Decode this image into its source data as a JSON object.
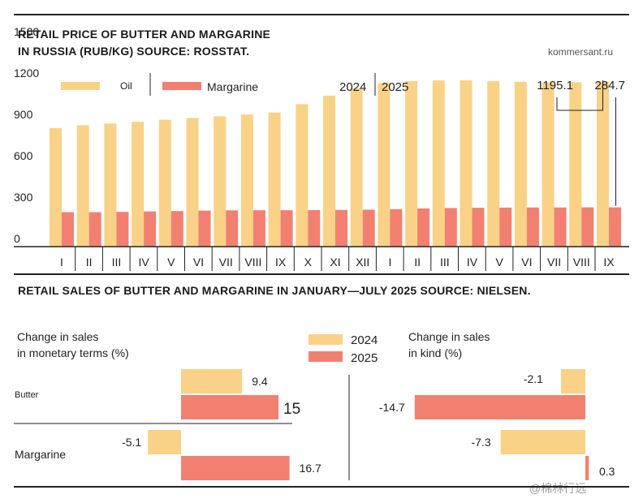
{
  "source_site": "kommersant.ru",
  "watermark": "@棉林行远",
  "colors": {
    "oil": "#f9d287",
    "margarine": "#f28071",
    "axis": "#222222",
    "text": "#222222"
  },
  "price_chart": {
    "title_line1": "RETAIL PRICE OF BUTTER AND MARGARINE",
    "title_line2": "IN RUSSIA (RUB/KG) SOURCE: ROSSTAT."
  },
  "sales_chart": {
    "title": "RETAIL SALES OF BUTTER AND MARGARINE IN JANUARY—JULY 2025 SOURCE: NIELSEN.",
    "left_header": [
      "Change in sales",
      "in monetary terms (%)"
    ],
    "right_header": [
      "Change in sales",
      "in kind (%)"
    ]
  },
  "chart_data": [
    {
      "type": "bar",
      "title": "RETAIL PRICE OF BUTTER AND MARGARINE IN RUSSIA (RUB/KG) SOURCE: ROSSTAT.",
      "ylim": [
        0,
        1500
      ],
      "yticks": [
        0,
        300,
        600,
        900,
        1200,
        1500
      ],
      "categories": [
        "I",
        "II",
        "III",
        "IV",
        "V",
        "VI",
        "VII",
        "VIII",
        "IX",
        "X",
        "XI",
        "XII",
        "I",
        "II",
        "III",
        "IV",
        "V",
        "VI",
        "VII",
        "VIII",
        "IX"
      ],
      "year_labels": [
        "2024",
        "2025"
      ],
      "series": [
        {
          "name": "Oil",
          "values": [
            860,
            880,
            893,
            905,
            920,
            933,
            945,
            958,
            972,
            1033,
            1095,
            1148,
            1185,
            1200,
            1205,
            1205,
            1200,
            1195,
            1190,
            1192,
            1195.1
          ]
        },
        {
          "name": "Margarine",
          "values": [
            250,
            250,
            252,
            255,
            258,
            261,
            263,
            264,
            264,
            265,
            266,
            268,
            272,
            277,
            280,
            282,
            283,
            284,
            284,
            285,
            284.7
          ]
        }
      ],
      "annotations": [
        {
          "text": "1195.1",
          "series": "Oil",
          "index": 20
        },
        {
          "text": "284.7",
          "series": "Margarine",
          "index": 20
        }
      ]
    },
    {
      "type": "bar",
      "orientation": "horizontal",
      "title": "Change in sales in monetary terms (%)",
      "categories": [
        "Butter",
        "Margarine"
      ],
      "series": [
        {
          "name": "2024",
          "values": [
            9.4,
            -5.1
          ],
          "labels": [
            "9.4",
            "-5.1"
          ]
        },
        {
          "name": "2025",
          "values": [
            15,
            16.7
          ],
          "labels": [
            "15",
            "16.7"
          ]
        }
      ]
    },
    {
      "type": "bar",
      "orientation": "horizontal",
      "title": "Change in sales in kind (%)",
      "categories": [
        "Butter",
        "Margarine"
      ],
      "series": [
        {
          "name": "2024",
          "values": [
            -2.1,
            -7.3
          ],
          "labels": [
            "-2.1",
            "-7.3"
          ]
        },
        {
          "name": "2025",
          "values": [
            -14.7,
            0.3
          ],
          "labels": [
            "-14.7",
            "0.3"
          ]
        }
      ]
    }
  ]
}
